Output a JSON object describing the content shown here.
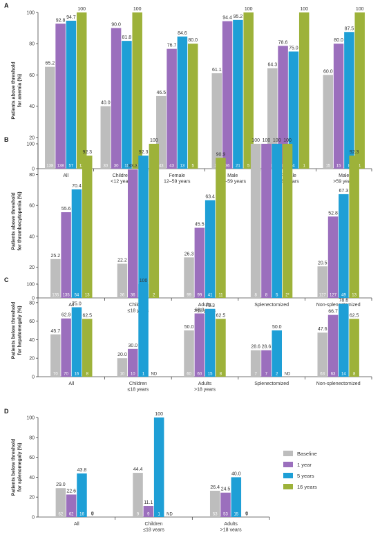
{
  "colors": {
    "Baseline": "#bdbdbd",
    "1 year": "#9b6fbd",
    "5 years": "#1e9fd6",
    "16 years": "#9db23a"
  },
  "legend": {
    "position": "right",
    "items": [
      "Baseline",
      "1 year",
      "5 years",
      "16 years"
    ]
  },
  "chart_data": [
    {
      "type": "bar",
      "panel": "A",
      "ylabel": "Patients above threshold for anemia (%)",
      "ylim": [
        0,
        100
      ],
      "yticks": [
        0,
        20,
        40,
        60,
        80,
        100
      ],
      "categories": [
        "All",
        "Children <12 years",
        "Female 12–59 years",
        "Male 12–59 years",
        "Female >59 years",
        "Male >59 years"
      ],
      "series": [
        {
          "name": "Baseline",
          "values": [
            65.2,
            40.0,
            46.5,
            61.1,
            64.3,
            60.0
          ],
          "labels": [
            "65.2",
            "40.0",
            "46.5",
            "61.1",
            "64.3",
            "60.0"
          ],
          "n": [
            "138",
            "30",
            "43",
            "36",
            "14",
            "15"
          ]
        },
        {
          "name": "1 year",
          "values": [
            92.8,
            90.0,
            76.7,
            94.4,
            78.6,
            80.0
          ],
          "labels": [
            "92.8",
            "90.0",
            "76.7",
            "94.4",
            "78.6",
            "80.0"
          ],
          "n": [
            "138",
            "30",
            "43",
            "36",
            "14",
            "15"
          ]
        },
        {
          "name": "5 years",
          "values": [
            94.7,
            81.8,
            84.6,
            95.2,
            75.0,
            87.5
          ],
          "labels": [
            "94.7",
            "81.8",
            "84.6",
            "95.2",
            "75.0",
            "87.5"
          ],
          "n": [
            "57",
            "11",
            "13",
            "21",
            "4",
            "8"
          ]
        },
        {
          "name": "16 years",
          "values": [
            100,
            100,
            80.0,
            100,
            100,
            100
          ],
          "labels": [
            "100",
            "100",
            "80.0",
            "100",
            "100",
            "100"
          ],
          "n": [
            "13",
            "1",
            "5",
            "5",
            "1",
            "1"
          ]
        }
      ]
    },
    {
      "type": "bar",
      "panel": "B",
      "ylabel": "Patients above threshold for thrombocytopenia (%)",
      "ylim": [
        0,
        100
      ],
      "yticks": [
        0,
        20,
        40,
        60,
        80,
        100
      ],
      "categories": [
        "All",
        "Children ≤18 years",
        "Adults >18 years",
        "Splenectomized",
        "Non-splenectomized"
      ],
      "series": [
        {
          "name": "Baseline",
          "values": [
            25.2,
            22.2,
            26.3,
            100,
            20.5
          ],
          "labels": [
            "25.2",
            "22.2",
            "26.3",
            "100",
            "20.5"
          ],
          "n": [
            "135",
            "36",
            "99",
            "8",
            "127"
          ]
        },
        {
          "name": "1 year",
          "values": [
            55.6,
            83.3,
            45.5,
            100,
            52.8
          ],
          "labels": [
            "55.6",
            "83.3",
            "45.5",
            "100",
            "52.8"
          ],
          "n": [
            "135",
            "36",
            "99",
            "8",
            "127"
          ]
        },
        {
          "name": "5 years",
          "values": [
            70.4,
            92.3,
            63.4,
            100,
            67.3
          ],
          "labels": [
            "70.4",
            "92.3",
            "63.4",
            "100",
            "67.3"
          ],
          "n": [
            "54",
            "13",
            "41",
            "5",
            "49"
          ]
        },
        {
          "name": "16 years",
          "values": [
            92.3,
            100,
            90.9,
            100,
            92.3
          ],
          "labels": [
            "92.3",
            "100",
            "90.9",
            "100",
            "92.3"
          ],
          "n": [
            "13",
            "2",
            "11",
            "2*",
            "13"
          ]
        }
      ]
    },
    {
      "type": "bar",
      "panel": "C",
      "ylabel": "Patients below threshold for hepatomegaly (%)",
      "ylim": [
        0,
        100
      ],
      "yticks": [
        0,
        20,
        40,
        60,
        80,
        100
      ],
      "categories": [
        "All",
        "Children ≤18 years",
        "Adults >18 years",
        "Splenectomized",
        "Non-splenectomized"
      ],
      "series": [
        {
          "name": "Baseline",
          "values": [
            45.7,
            20.0,
            50.0,
            28.6,
            47.6
          ],
          "labels": [
            "45.7",
            "20.0",
            "50.0",
            "28.6",
            "47.6"
          ],
          "n": [
            "70",
            "10",
            "60",
            "7",
            "63"
          ]
        },
        {
          "name": "1 year",
          "values": [
            62.9,
            30.0,
            68.3,
            28.6,
            66.7
          ],
          "labels": [
            "62.9",
            "30.0",
            "68.3",
            "28.6",
            "66.7"
          ],
          "n": [
            "70",
            "10",
            "60",
            "7",
            "63"
          ]
        },
        {
          "name": "5 years",
          "values": [
            75.0,
            100,
            73.3,
            50.0,
            78.6
          ],
          "labels": [
            "75.0",
            "100",
            "73.3",
            "50.0",
            "78.6"
          ],
          "n": [
            "16",
            "1",
            "15",
            "2",
            "14"
          ]
        },
        {
          "name": "16 years",
          "values": [
            62.5,
            null,
            62.5,
            null,
            62.5
          ],
          "labels": [
            "62.5",
            "",
            "62.5",
            "",
            "62.5"
          ],
          "n": [
            "8",
            "ND",
            "8",
            "ND",
            "8"
          ]
        }
      ]
    },
    {
      "type": "bar",
      "panel": "D",
      "ylabel": "Patients below threshold for splenomegaly (%)",
      "ylim": [
        0,
        100
      ],
      "yticks": [
        0,
        20,
        40,
        60,
        80,
        100
      ],
      "categories": [
        "All",
        "Children ≤18 years",
        "Adults >18 years"
      ],
      "series": [
        {
          "name": "Baseline",
          "values": [
            29.0,
            44.4,
            26.4
          ],
          "labels": [
            "29.0",
            "44.4",
            "26.4"
          ],
          "n": [
            "62",
            "9",
            "53"
          ]
        },
        {
          "name": "1 year",
          "values": [
            22.6,
            11.1,
            24.5
          ],
          "labels": [
            "22.6",
            "11.1",
            "24.5"
          ],
          "n": [
            "62",
            "9",
            "53"
          ]
        },
        {
          "name": "5 years",
          "values": [
            43.8,
            100,
            40.0
          ],
          "labels": [
            "43.8",
            "100",
            "40.0"
          ],
          "n": [
            "16",
            "1",
            "15"
          ]
        },
        {
          "name": "16 years",
          "values": [
            0,
            null,
            0
          ],
          "labels": [
            "0",
            "",
            "0"
          ],
          "n": [
            "5",
            "ND",
            "5"
          ]
        }
      ]
    }
  ]
}
